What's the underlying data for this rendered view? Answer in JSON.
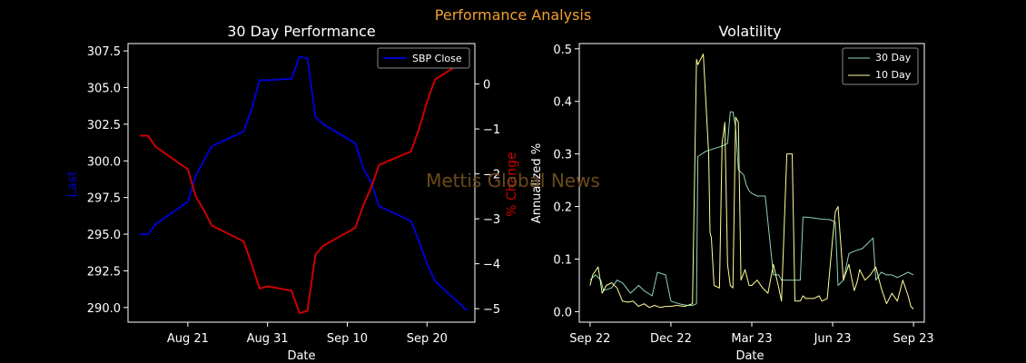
{
  "suptitle": "Performance Analysis",
  "watermark": "Mettis Global News",
  "colors": {
    "background": "#000000",
    "suptitle": "#f0a030",
    "close_line": "#0000cc",
    "pct_line": "#cc0000",
    "vol30": "#8fd3b8",
    "vol10": "#ffff99",
    "watermark": "#6b4a1a",
    "axis": "#ffffff"
  },
  "chart_data": [
    {
      "type": "line",
      "title": "30 Day Performance",
      "xlabel": "Date",
      "ylabel": "Last",
      "ylabel_right": "% Change",
      "legend": [
        "SBP Close"
      ],
      "legend_position": "top-right",
      "x_ticks": [
        "Aug 21",
        "Aug 31",
        "Sep 10",
        "Sep 20"
      ],
      "x_tick_days": [
        21,
        31,
        41,
        51
      ],
      "xlim_days": [
        13.5,
        57
      ],
      "ylim": [
        289.0,
        308.0
      ],
      "y_ticks": [
        "290.0",
        "292.5",
        "295.0",
        "297.5",
        "300.0",
        "302.5",
        "305.0",
        "307.5"
      ],
      "y2lim": [
        -5.3,
        0.9
      ],
      "y2_ticks": [
        "0",
        "−1",
        "−2",
        "−3",
        "−4",
        "−5"
      ],
      "series": [
        {
          "name": "SBP Close",
          "days": [
            15,
            16,
            17,
            21,
            22,
            23,
            24,
            28,
            29,
            30,
            31,
            34,
            35,
            36,
            37,
            38,
            42,
            43,
            44,
            45,
            49,
            50,
            51,
            52,
            56
          ],
          "values": [
            295.0,
            295.0,
            295.7,
            297.2,
            299.0,
            300.0,
            301.0,
            302.0,
            303.5,
            305.5,
            305.5,
            305.6,
            307.1,
            307.0,
            303.0,
            302.5,
            301.2,
            299.5,
            298.5,
            296.9,
            295.9,
            294.5,
            293.0,
            291.8,
            289.8
          ]
        },
        {
          "name": "% Change",
          "axis": "right",
          "days": [
            15,
            16,
            17,
            21,
            22,
            23,
            24,
            28,
            29,
            30,
            31,
            34,
            35,
            36,
            37,
            38,
            42,
            43,
            44,
            45,
            49,
            50,
            51,
            52,
            56
          ],
          "values": [
            -1.15,
            -1.15,
            -1.4,
            -1.9,
            -2.5,
            -2.8,
            -3.15,
            -3.5,
            -4.0,
            -4.55,
            -4.5,
            -4.6,
            -5.1,
            -5.05,
            -3.8,
            -3.6,
            -3.2,
            -2.7,
            -2.3,
            -1.8,
            -1.5,
            -1.0,
            -0.4,
            0.1,
            0.55
          ]
        }
      ]
    },
    {
      "type": "line",
      "title": "Volatility",
      "xlabel": "Date",
      "ylabel": "Annualized %",
      "legend": [
        "30 Day",
        "10 Day"
      ],
      "legend_position": "top-right",
      "x_ticks": [
        "Sep 22",
        "Dec 22",
        "Mar 23",
        "Jun 23",
        "Sep 23"
      ],
      "x_tick_months": [
        0,
        3,
        6,
        9,
        12
      ],
      "xlim_months": [
        -0.4,
        12.4
      ],
      "ylim": [
        -0.02,
        0.51
      ],
      "y_ticks": [
        "0.0",
        "0.1",
        "0.2",
        "0.3",
        "0.4",
        "0.5"
      ],
      "y_tick_values": [
        0.0,
        0.1,
        0.2,
        0.3,
        0.4,
        0.5
      ],
      "series": [
        {
          "name": "30 Day",
          "months": [
            0.0,
            0.2,
            0.4,
            0.5,
            0.8,
            1.0,
            1.2,
            1.5,
            1.8,
            2.0,
            2.3,
            2.5,
            2.8,
            3.0,
            3.3,
            3.6,
            3.8,
            3.95,
            4.0,
            4.3,
            4.6,
            4.9,
            5.1,
            5.2,
            5.3,
            5.4,
            5.5,
            5.7,
            5.8,
            5.9,
            6.0,
            6.2,
            6.5,
            6.8,
            7.0,
            7.1,
            7.2,
            7.5,
            7.8,
            7.9,
            8.0,
            8.3,
            8.6,
            8.9,
            9.1,
            9.2,
            9.4,
            9.6,
            9.8,
            10.1,
            10.3,
            10.4,
            10.5,
            10.6,
            10.8,
            11.0,
            11.2,
            11.4,
            11.6,
            11.8,
            12.0
          ],
          "values": [
            0.06,
            0.07,
            0.06,
            0.04,
            0.045,
            0.06,
            0.055,
            0.035,
            0.05,
            0.04,
            0.03,
            0.075,
            0.07,
            0.02,
            0.015,
            0.012,
            0.012,
            0.015,
            0.295,
            0.305,
            0.31,
            0.315,
            0.32,
            0.38,
            0.38,
            0.35,
            0.27,
            0.26,
            0.24,
            0.23,
            0.225,
            0.22,
            0.22,
            0.07,
            0.07,
            0.06,
            0.06,
            0.06,
            0.06,
            0.18,
            0.18,
            0.178,
            0.176,
            0.175,
            0.17,
            0.05,
            0.06,
            0.11,
            0.115,
            0.12,
            0.13,
            0.135,
            0.14,
            0.06,
            0.075,
            0.07,
            0.07,
            0.065,
            0.07,
            0.075,
            0.07
          ]
        },
        {
          "name": "10 Day",
          "months": [
            0.0,
            0.1,
            0.3,
            0.45,
            0.6,
            0.8,
            1.0,
            1.2,
            1.4,
            1.6,
            1.8,
            2.0,
            2.2,
            2.4,
            2.6,
            2.8,
            3.0,
            3.2,
            3.5,
            3.8,
            3.95,
            4.0,
            4.2,
            4.4,
            4.45,
            4.5,
            4.6,
            4.8,
            4.9,
            5.0,
            5.1,
            5.2,
            5.3,
            5.4,
            5.5,
            5.6,
            5.75,
            5.9,
            6.0,
            6.2,
            6.4,
            6.6,
            6.8,
            7.0,
            7.1,
            7.3,
            7.5,
            7.6,
            7.8,
            7.9,
            8.0,
            8.3,
            8.5,
            8.6,
            8.8,
            9.0,
            9.1,
            9.2,
            9.4,
            9.6,
            9.8,
            9.9,
            10.0,
            10.2,
            10.4,
            10.6,
            10.8,
            11.0,
            11.2,
            11.4,
            11.6,
            11.8,
            11.9,
            12.0
          ],
          "values": [
            0.05,
            0.07,
            0.085,
            0.035,
            0.05,
            0.055,
            0.045,
            0.02,
            0.018,
            0.02,
            0.01,
            0.015,
            0.008,
            0.012,
            0.008,
            0.01,
            0.01,
            0.012,
            0.01,
            0.015,
            0.48,
            0.47,
            0.49,
            0.3,
            0.15,
            0.14,
            0.05,
            0.045,
            0.32,
            0.36,
            0.09,
            0.05,
            0.045,
            0.37,
            0.36,
            0.06,
            0.08,
            0.05,
            0.05,
            0.06,
            0.045,
            0.035,
            0.09,
            0.045,
            0.02,
            0.3,
            0.3,
            0.02,
            0.02,
            0.03,
            0.025,
            0.025,
            0.03,
            0.02,
            0.025,
            0.14,
            0.19,
            0.2,
            0.06,
            0.09,
            0.04,
            0.055,
            0.08,
            0.06,
            0.07,
            0.085,
            0.045,
            0.015,
            0.035,
            0.02,
            0.06,
            0.03,
            0.01,
            0.005
          ]
        }
      ]
    }
  ]
}
